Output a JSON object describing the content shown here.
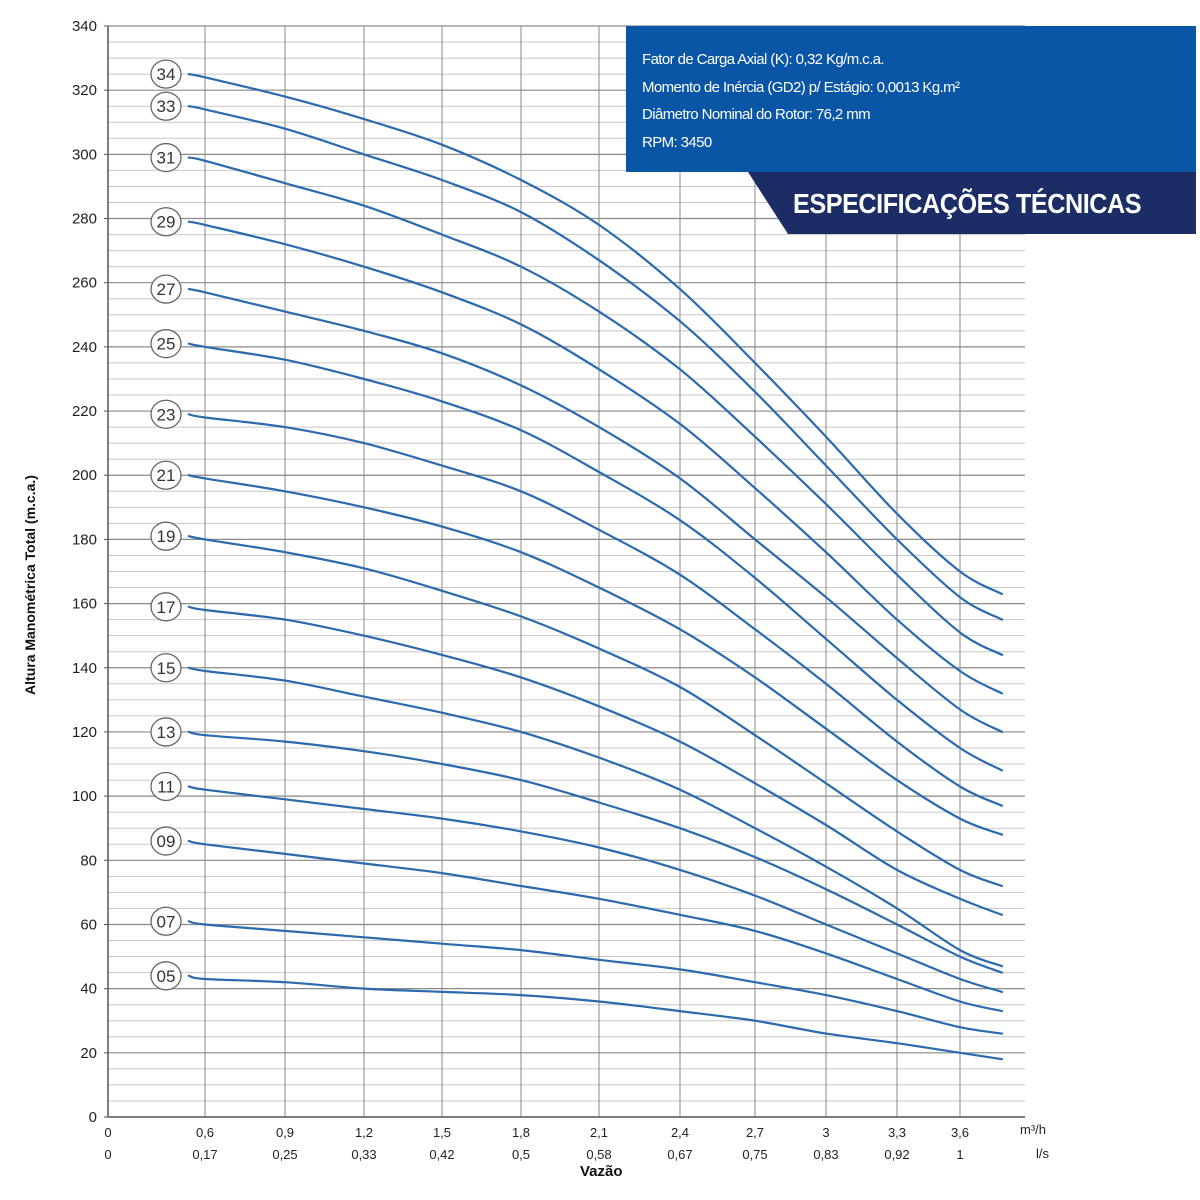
{
  "chart_data": {
    "type": "line",
    "ylabel": "Altura Manométrica Total (m.c.a.)",
    "xlabel": "Vazão",
    "x_unit_primary": "m³/h",
    "x_unit_secondary": "l/s",
    "ylim": [
      0,
      340
    ],
    "xlim": [
      0,
      3.8
    ],
    "yticks": [
      0,
      20,
      40,
      60,
      80,
      100,
      120,
      140,
      160,
      180,
      200,
      220,
      240,
      260,
      280,
      300,
      320,
      340
    ],
    "xticks_primary": [
      "0",
      "0,6",
      "0,9",
      "1,2",
      "1,5",
      "1,8",
      "2,1",
      "2,4",
      "2,7",
      "3",
      "3,3",
      "3,6"
    ],
    "xticks_primary_values": [
      0,
      0.6,
      0.9,
      1.2,
      1.5,
      1.8,
      2.1,
      2.4,
      2.7,
      3.0,
      3.3,
      3.6
    ],
    "xticks_secondary": [
      "0",
      "0,17",
      "0,25",
      "0,33",
      "0,42",
      "0,5",
      "0,58",
      "0,67",
      "0,75",
      "0,83",
      "0,92",
      "1"
    ],
    "grid": true,
    "x": [
      0.5,
      0.6,
      0.9,
      1.2,
      1.5,
      1.8,
      2.1,
      2.4,
      2.7,
      3.0,
      3.3,
      3.6,
      3.8
    ],
    "series": [
      {
        "name": "34",
        "values": [
          325,
          324,
          318,
          311,
          303,
          292,
          278,
          258,
          235,
          212,
          188,
          170,
          163
        ]
      },
      {
        "name": "33",
        "values": [
          315,
          314,
          308,
          300,
          292,
          282,
          267,
          248,
          226,
          203,
          180,
          162,
          155
        ]
      },
      {
        "name": "31",
        "values": [
          299,
          298,
          291,
          284,
          275,
          265,
          251,
          233,
          212,
          191,
          169,
          151,
          144
        ]
      },
      {
        "name": "29",
        "values": [
          279,
          278,
          272,
          265,
          257,
          247,
          233,
          216,
          196,
          176,
          155,
          139,
          132
        ]
      },
      {
        "name": "27",
        "values": [
          258,
          257,
          251,
          245,
          238,
          228,
          215,
          199,
          180,
          162,
          143,
          127,
          120
        ]
      },
      {
        "name": "25",
        "values": [
          241,
          240,
          236,
          230,
          223,
          214,
          201,
          186,
          168,
          149,
          130,
          115,
          108
        ]
      },
      {
        "name": "23",
        "values": [
          219,
          218,
          215,
          210,
          203,
          195,
          183,
          169,
          152,
          135,
          117,
          103,
          97
        ]
      },
      {
        "name": "21",
        "values": [
          200,
          199,
          195,
          190,
          184,
          176,
          165,
          152,
          137,
          121,
          105,
          93,
          88
        ]
      },
      {
        "name": "19",
        "values": [
          181,
          180,
          176,
          171,
          164,
          156,
          146,
          134,
          119,
          104,
          89,
          77,
          72
        ]
      },
      {
        "name": "17",
        "values": [
          159,
          158,
          155,
          150,
          144,
          137,
          128,
          117,
          104,
          91,
          77,
          68,
          63
        ]
      },
      {
        "name": "15",
        "values": [
          140,
          139,
          136,
          131,
          126,
          120,
          112,
          102,
          90,
          78,
          65,
          52,
          47
        ]
      },
      {
        "name": "13",
        "values": [
          120,
          119,
          117,
          114,
          110,
          105,
          98,
          90,
          81,
          71,
          60,
          50,
          45
        ]
      },
      {
        "name": "11",
        "values": [
          103,
          102,
          99,
          96,
          93,
          89,
          84,
          77,
          69,
          60,
          51,
          43,
          39
        ]
      },
      {
        "name": "09",
        "values": [
          86,
          85,
          82,
          79,
          76,
          72,
          68,
          63,
          58,
          51,
          43,
          36,
          33
        ]
      },
      {
        "name": "07",
        "values": [
          61,
          60,
          58,
          56,
          54,
          52,
          49,
          46,
          42,
          38,
          33,
          28,
          26
        ]
      },
      {
        "name": "05",
        "values": [
          44,
          43,
          42,
          40,
          39,
          38,
          36,
          33,
          30,
          26,
          23,
          20,
          18
        ]
      }
    ]
  },
  "specs": {
    "lines": [
      "Fator de Carga Axial (K): 0,32 Kg/m.c.a.",
      "Momento de Inércia (GD2) p/ Estágio: 0,0013 Kg.m²",
      "Diâmetro Nominal do Rotor: 76,2 mm",
      "RPM: 3450"
    ],
    "banner": "ESPECIFICAÇÕES TÉCNICAS",
    "box_color": "#0a56a6",
    "banner_color": "#1b2d64"
  },
  "colors": {
    "curve": "#2a6aad",
    "grid_major": "#8a8a8a",
    "grid_minor": "#c8c8c8"
  }
}
